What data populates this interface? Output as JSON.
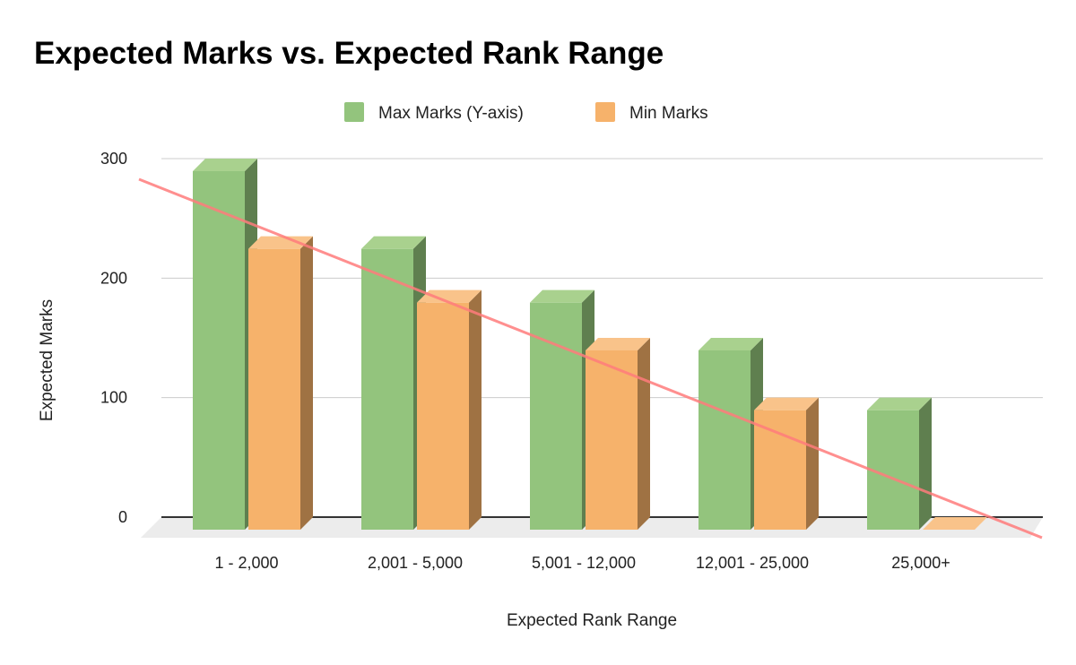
{
  "chart_data": {
    "type": "bar",
    "style": "3d-column",
    "title": "Expected Marks vs. Expected Rank Range",
    "xlabel": "Expected Rank Range",
    "ylabel": "Expected Marks",
    "ylim": [
      0,
      300
    ],
    "yticks": [
      "0",
      "100",
      "200",
      "300"
    ],
    "grid": true,
    "legend": "top",
    "categories": [
      "1 - 2,000",
      "2,001 - 5,000",
      "5,001 - 12,000",
      "12,001 - 25,000",
      "25,000+"
    ],
    "series": [
      {
        "name": "Max Marks (Y-axis)",
        "values": [
          300,
          235,
          190,
          150,
          100
        ],
        "color": "#93c47d"
      },
      {
        "name": "Min Marks",
        "values": [
          235,
          190,
          150,
          100,
          0
        ],
        "color": "#f6b26b"
      }
    ],
    "trendline": {
      "series": "Min Marks",
      "type": "linear",
      "color": "#ff7b7b"
    }
  }
}
